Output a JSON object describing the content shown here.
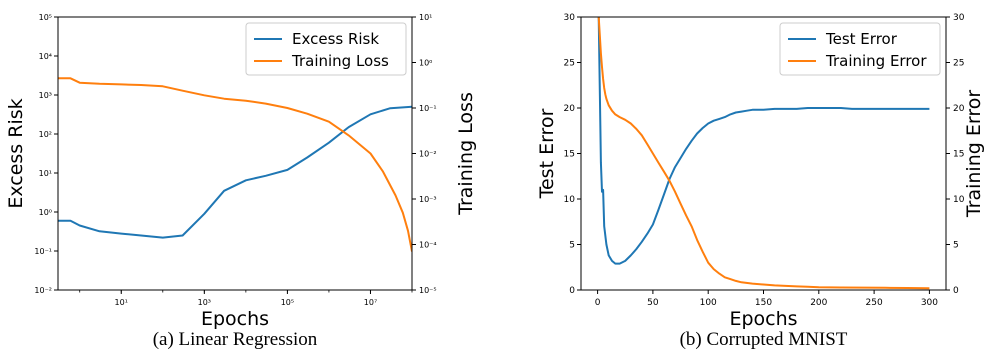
{
  "chart_data": [
    {
      "type": "line",
      "caption": "(a)  Linear Regression",
      "xlabel": "Epochs",
      "ylabel": "Excess Risk",
      "ylabel_right": "Training Loss",
      "xscale": "log",
      "yscale": "log",
      "y2scale": "log",
      "xlim": [
        0.3,
        100000000
      ],
      "ylim": [
        0.01,
        100000
      ],
      "y2lim": [
        1e-05,
        10
      ],
      "xticks": [
        10,
        1000,
        100000,
        10000000
      ],
      "xtick_labels": [
        "10¹",
        "10³",
        "10⁵",
        "10⁷"
      ],
      "yticks": [
        0.01,
        0.1,
        1,
        10,
        100,
        1000,
        10000,
        100000
      ],
      "ytick_labels": [
        "10⁻²",
        "10⁻¹",
        "10⁰",
        "10¹",
        "10²",
        "10³",
        "10⁴",
        "10⁵"
      ],
      "y2ticks": [
        1e-05,
        0.0001,
        0.001,
        0.01,
        0.1,
        1,
        10
      ],
      "y2tick_labels": [
        "10⁻⁵",
        "10⁻⁴",
        "10⁻³",
        "10⁻²",
        "10⁻¹",
        "10⁰",
        "10¹"
      ],
      "legend_position": "top-right",
      "series": [
        {
          "name": "Excess Risk",
          "axis": "left",
          "color": "#1f77b4",
          "x": [
            0.3,
            0.6,
            1,
            3,
            10,
            30,
            100,
            300,
            1000,
            3000,
            10000,
            30000,
            100000,
            300000,
            1000000,
            3000000,
            10000000,
            30000000,
            100000000
          ],
          "y": [
            0.6,
            0.6,
            0.45,
            0.32,
            0.28,
            0.25,
            0.22,
            0.25,
            0.9,
            3.5,
            6.5,
            8.5,
            12,
            25,
            60,
            150,
            320,
            460,
            500
          ]
        },
        {
          "name": "Training Loss",
          "axis": "right",
          "color": "#ff7f0e",
          "x": [
            0.3,
            0.6,
            1,
            3,
            10,
            30,
            100,
            300,
            1000,
            3000,
            10000,
            30000,
            100000,
            300000,
            1000000,
            3000000,
            10000000,
            20000000,
            40000000,
            60000000,
            80000000,
            100000000
          ],
          "y": [
            0.45,
            0.45,
            0.36,
            0.34,
            0.33,
            0.32,
            0.3,
            0.24,
            0.19,
            0.16,
            0.145,
            0.125,
            0.1,
            0.075,
            0.05,
            0.025,
            0.01,
            0.004,
            0.0012,
            0.0005,
            0.0002,
            7e-05
          ]
        }
      ]
    },
    {
      "type": "line",
      "caption": "(b)  Corrupted MNIST",
      "xlabel": "Epochs",
      "ylabel": "Test Error",
      "ylabel_right": "Training Error",
      "xlim": [
        -15,
        315
      ],
      "ylim": [
        0,
        30
      ],
      "y2lim": [
        0,
        30
      ],
      "xticks": [
        0,
        50,
        100,
        150,
        200,
        250,
        300
      ],
      "yticks": [
        0,
        5,
        10,
        15,
        20,
        25,
        30
      ],
      "y2ticks": [
        0,
        5,
        10,
        15,
        20,
        25,
        30
      ],
      "legend_position": "top-right",
      "series": [
        {
          "name": "Test Error",
          "axis": "left",
          "color": "#1f77b4",
          "x": [
            1,
            2,
            3,
            4,
            5,
            6,
            8,
            10,
            13,
            16,
            20,
            25,
            30,
            35,
            40,
            45,
            50,
            55,
            60,
            65,
            70,
            75,
            80,
            85,
            90,
            95,
            100,
            105,
            110,
            115,
            120,
            125,
            130,
            135,
            140,
            145,
            150,
            160,
            170,
            180,
            190,
            200,
            210,
            220,
            230,
            240,
            250,
            260,
            270,
            280,
            290,
            300
          ],
          "y": [
            30,
            22,
            14,
            10.8,
            11,
            7,
            5,
            3.8,
            3.2,
            2.9,
            2.9,
            3.2,
            3.8,
            4.5,
            5.3,
            6.2,
            7.2,
            8.8,
            10.5,
            12.2,
            13.5,
            14.5,
            15.5,
            16.4,
            17.2,
            17.8,
            18.3,
            18.6,
            18.8,
            19.0,
            19.3,
            19.5,
            19.6,
            19.7,
            19.8,
            19.8,
            19.8,
            19.9,
            19.9,
            19.9,
            20.0,
            20.0,
            20.0,
            20.0,
            19.9,
            19.9,
            19.9,
            19.9,
            19.9,
            19.9,
            19.9,
            19.9
          ]
        },
        {
          "name": "Training Error",
          "axis": "right",
          "color": "#ff7f0e",
          "x": [
            1,
            2,
            3,
            4,
            5,
            6,
            7,
            8,
            10,
            13,
            16,
            20,
            25,
            30,
            35,
            40,
            45,
            50,
            55,
            60,
            65,
            70,
            75,
            80,
            85,
            90,
            95,
            100,
            105,
            110,
            115,
            120,
            125,
            130,
            140,
            150,
            160,
            170,
            180,
            190,
            200,
            220,
            240,
            260,
            280,
            300
          ],
          "y": [
            30,
            28,
            26,
            24.5,
            23.2,
            22.2,
            21.5,
            21.0,
            20.3,
            19.7,
            19.3,
            19.0,
            18.7,
            18.3,
            17.7,
            17.0,
            16.0,
            15.0,
            14.0,
            13.0,
            12.0,
            10.8,
            9.5,
            8.2,
            7.0,
            5.5,
            4.2,
            3.0,
            2.3,
            1.8,
            1.4,
            1.2,
            1.0,
            0.85,
            0.7,
            0.6,
            0.5,
            0.45,
            0.4,
            0.35,
            0.3,
            0.28,
            0.26,
            0.24,
            0.22,
            0.2
          ]
        }
      ]
    }
  ]
}
